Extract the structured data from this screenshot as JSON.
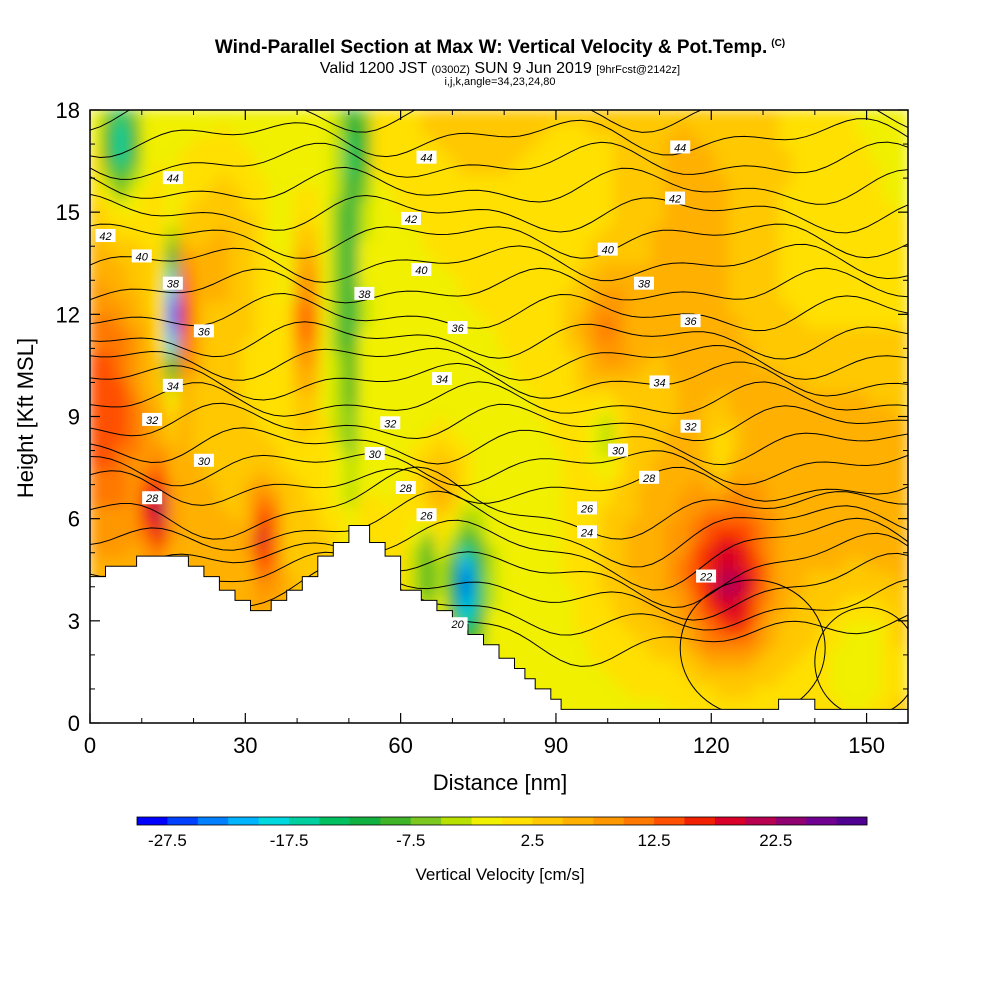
{
  "header": {
    "title": "Wind-Parallel Section at Max W: Vertical Velocity & Pot.Temp.",
    "copyright_mark": "(C)",
    "subtitle_valid": "Valid 1200 JST",
    "subtitle_utc": "(0300Z)",
    "subtitle_date": "SUN 9 Jun 2019",
    "subtitle_fcst": "[9hrFcst@2142z]",
    "subtitle_indices": "i,j,k,angle=34,23,24,80"
  },
  "chart_data": {
    "type": "heatmap",
    "title": "Wind-Parallel Section at Max W: Vertical Velocity & Pot.Temp.",
    "xlabel": "Distance [nm]",
    "ylabel": "Height [Kft MSL]",
    "xlim": [
      0,
      158
    ],
    "ylim": [
      0,
      18
    ],
    "x_ticks": [
      0,
      30,
      60,
      90,
      120,
      150
    ],
    "y_ticks": [
      0,
      3,
      6,
      9,
      12,
      15,
      18
    ],
    "colorbar": {
      "label": "Vertical Velocity [cm/s]",
      "tick_labels": [
        "-27.5",
        "-17.5",
        "-7.5",
        "2.5",
        "12.5",
        "22.5"
      ],
      "tick_values": [
        -27.5,
        -17.5,
        -7.5,
        2.5,
        12.5,
        22.5
      ],
      "min": -30,
      "max": 30,
      "step": 2.5,
      "colors": [
        "#0000ff",
        "#0040ff",
        "#0080ff",
        "#00b4ff",
        "#00d8e0",
        "#00d0a0",
        "#00c060",
        "#10b040",
        "#40b428",
        "#7cc820",
        "#b8e000",
        "#f0f000",
        "#ffe000",
        "#ffc800",
        "#ffb000",
        "#ff9800",
        "#ff7800",
        "#ff5000",
        "#f02000",
        "#d80028",
        "#b80050",
        "#900070",
        "#700090",
        "#500090"
      ]
    },
    "contour_field": "Potential temperature",
    "contour_labels": [
      {
        "value": 44,
        "x": 16,
        "y": 16.0
      },
      {
        "value": 44,
        "x": 65,
        "y": 16.6
      },
      {
        "value": 44,
        "x": 114,
        "y": 16.9
      },
      {
        "value": 42,
        "x": 3,
        "y": 14.3
      },
      {
        "value": 42,
        "x": 62,
        "y": 14.8
      },
      {
        "value": 42,
        "x": 113,
        "y": 15.4
      },
      {
        "value": 40,
        "x": 10,
        "y": 13.7
      },
      {
        "value": 40,
        "x": 64,
        "y": 13.3
      },
      {
        "value": 40,
        "x": 100,
        "y": 13.9
      },
      {
        "value": 38,
        "x": 16,
        "y": 12.9
      },
      {
        "value": 38,
        "x": 53,
        "y": 12.6
      },
      {
        "value": 38,
        "x": 107,
        "y": 12.9
      },
      {
        "value": 36,
        "x": 22,
        "y": 11.5
      },
      {
        "value": 36,
        "x": 71,
        "y": 11.6
      },
      {
        "value": 36,
        "x": 116,
        "y": 11.8
      },
      {
        "value": 34,
        "x": 16,
        "y": 9.9
      },
      {
        "value": 34,
        "x": 68,
        "y": 10.1
      },
      {
        "value": 34,
        "x": 110,
        "y": 10.0
      },
      {
        "value": 32,
        "x": 12,
        "y": 8.9
      },
      {
        "value": 32,
        "x": 58,
        "y": 8.8
      },
      {
        "value": 32,
        "x": 116,
        "y": 8.7
      },
      {
        "value": 30,
        "x": 22,
        "y": 7.7
      },
      {
        "value": 30,
        "x": 55,
        "y": 7.9
      },
      {
        "value": 30,
        "x": 102,
        "y": 8.0
      },
      {
        "value": 28,
        "x": 12,
        "y": 6.6
      },
      {
        "value": 28,
        "x": 61,
        "y": 6.9
      },
      {
        "value": 28,
        "x": 108,
        "y": 7.2
      },
      {
        "value": 26,
        "x": 65,
        "y": 6.1
      },
      {
        "value": 26,
        "x": 96,
        "y": 6.3
      },
      {
        "value": 24,
        "x": 96,
        "y": 5.6
      },
      {
        "value": 22,
        "x": 119,
        "y": 4.3
      },
      {
        "value": 20,
        "x": 71,
        "y": 2.9
      }
    ],
    "terrain": [
      [
        0,
        4.3
      ],
      [
        3,
        4.3
      ],
      [
        3,
        4.6
      ],
      [
        9,
        4.6
      ],
      [
        9,
        4.9
      ],
      [
        19,
        4.9
      ],
      [
        19,
        4.6
      ],
      [
        22,
        4.6
      ],
      [
        22,
        4.3
      ],
      [
        25,
        4.3
      ],
      [
        25,
        3.9
      ],
      [
        28,
        3.9
      ],
      [
        28,
        3.6
      ],
      [
        31,
        3.6
      ],
      [
        31,
        3.3
      ],
      [
        35,
        3.3
      ],
      [
        35,
        3.6
      ],
      [
        38,
        3.6
      ],
      [
        38,
        3.9
      ],
      [
        41,
        3.9
      ],
      [
        41,
        4.3
      ],
      [
        44,
        4.3
      ],
      [
        44,
        4.9
      ],
      [
        47,
        4.9
      ],
      [
        47,
        5.3
      ],
      [
        50,
        5.3
      ],
      [
        50,
        5.8
      ],
      [
        54,
        5.8
      ],
      [
        54,
        5.3
      ],
      [
        57,
        5.3
      ],
      [
        57,
        4.9
      ],
      [
        60,
        4.9
      ],
      [
        60,
        3.9
      ],
      [
        64,
        3.9
      ],
      [
        64,
        3.6
      ],
      [
        67,
        3.6
      ],
      [
        67,
        3.3
      ],
      [
        70,
        3.3
      ],
      [
        70,
        2.9
      ],
      [
        73,
        2.9
      ],
      [
        73,
        2.6
      ],
      [
        76,
        2.6
      ],
      [
        76,
        2.3
      ],
      [
        79,
        2.3
      ],
      [
        79,
        1.9
      ],
      [
        82,
        1.9
      ],
      [
        82,
        1.6
      ],
      [
        84,
        1.6
      ],
      [
        84,
        1.3
      ],
      [
        86,
        1.3
      ],
      [
        86,
        1.0
      ],
      [
        89,
        1.0
      ],
      [
        89,
        0.7
      ],
      [
        91,
        0.7
      ],
      [
        91,
        0.4
      ],
      [
        133,
        0.4
      ],
      [
        133,
        0.7
      ],
      [
        140,
        0.7
      ],
      [
        140,
        0.4
      ],
      [
        158,
        0.4
      ],
      [
        158,
        0
      ],
      [
        0,
        0
      ]
    ]
  }
}
